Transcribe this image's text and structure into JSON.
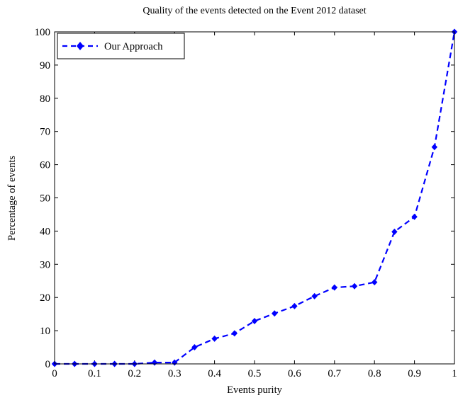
{
  "chart_data": {
    "type": "line",
    "title": "Quality of the events detected on the Event 2012 dataset",
    "xlabel": "Events purity",
    "ylabel": "Percentage of events",
    "xlim": [
      0,
      1
    ],
    "ylim": [
      0,
      100
    ],
    "xticks": [
      0,
      0.1,
      0.2,
      0.3,
      0.4,
      0.5,
      0.6,
      0.7,
      0.8,
      0.9,
      1
    ],
    "xtick_labels": [
      "0",
      "0.1",
      "0.2",
      "0.3",
      "0.4",
      "0.5",
      "0.6",
      "0.7",
      "0.8",
      "0.9",
      "1"
    ],
    "yticks": [
      0,
      10,
      20,
      30,
      40,
      50,
      60,
      70,
      80,
      90,
      100
    ],
    "ytick_labels": [
      "0",
      "10",
      "20",
      "30",
      "40",
      "50",
      "60",
      "70",
      "80",
      "90",
      "100"
    ],
    "grid": false,
    "legend_position": "top-left",
    "series": [
      {
        "name": "Our Approach",
        "color": "#0000ff",
        "line_style": "dashed",
        "marker": "diamond",
        "x": [
          0,
          0.05,
          0.1,
          0.15,
          0.2,
          0.25,
          0.3,
          0.35,
          0.4,
          0.45,
          0.5,
          0.55,
          0.6,
          0.65,
          0.7,
          0.75,
          0.8,
          0.85,
          0.9,
          0.95,
          1
        ],
        "y": [
          0,
          0,
          0,
          0,
          0,
          0.4,
          0.4,
          5,
          7.6,
          9.2,
          12.9,
          15.2,
          17.4,
          20.4,
          23,
          23.4,
          24.6,
          39.8,
          44.3,
          65.3,
          100
        ]
      }
    ]
  }
}
